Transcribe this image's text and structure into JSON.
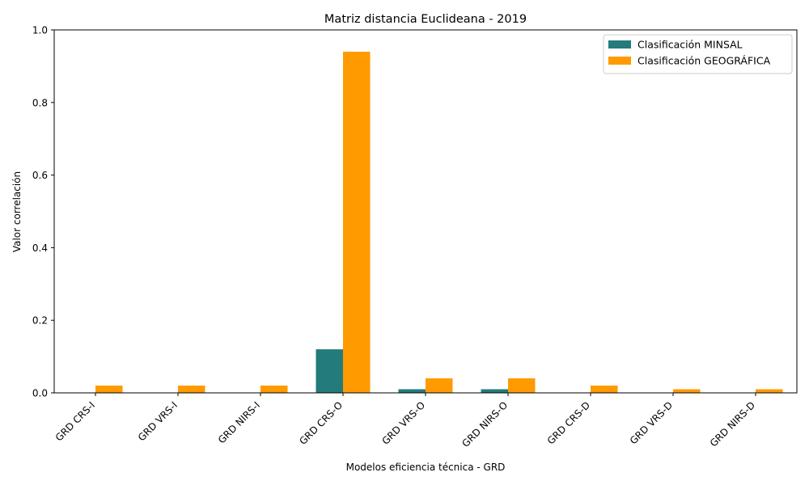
{
  "chart_data": {
    "type": "bar",
    "title": "Matriz distancia Euclideana - 2019",
    "xlabel": "Modelos eficiencia técnica - GRD",
    "ylabel": "Valor correlación",
    "categories": [
      "GRD CRS-I",
      "GRD VRS-I",
      "GRD NIRS-I",
      "GRD CRS-O",
      "GRD VRS-O",
      "GRD NIRS-O",
      "GRD CRS-D",
      "GRD VRS-D",
      "GRD NIRS-D"
    ],
    "series": [
      {
        "name": "Clasificación MINSAL",
        "color": "#247b7b",
        "values": [
          0.0,
          0.0,
          0.0,
          0.12,
          0.01,
          0.01,
          0.0,
          0.0,
          0.0
        ]
      },
      {
        "name": "Clasificación GEOGRÁFICA",
        "color": "#ff9a00",
        "values": [
          0.02,
          0.02,
          0.02,
          0.94,
          0.04,
          0.04,
          0.02,
          0.01,
          0.01
        ]
      }
    ],
    "ylim": [
      0,
      1.0
    ],
    "yticks": [
      "0.0",
      "0.2",
      "0.4",
      "0.6",
      "0.8",
      "1.0"
    ],
    "legend_position": "top-right",
    "grid": false
  }
}
